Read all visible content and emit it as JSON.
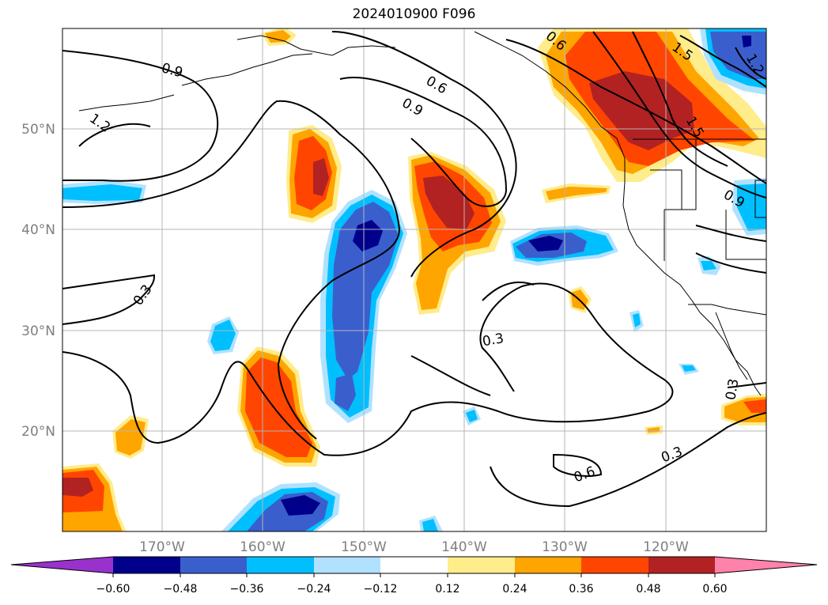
{
  "title": "2024010900 F096",
  "map": {
    "lat_ticks": [
      {
        "label": "50°N",
        "value": 50
      },
      {
        "label": "40°N",
        "value": 40
      },
      {
        "label": "30°N",
        "value": 30
      },
      {
        "label": "20°N",
        "value": 20
      }
    ],
    "lon_ticks": [
      {
        "label": "170°W",
        "value": -170
      },
      {
        "label": "160°W",
        "value": -160
      },
      {
        "label": "150°W",
        "value": -150
      },
      {
        "label": "140°W",
        "value": -140
      },
      {
        "label": "130°W",
        "value": -130
      },
      {
        "label": "120°W",
        "value": -120
      }
    ],
    "contour_labels": [
      "0.9",
      "1.2",
      "0.6",
      "0.9",
      "0.3",
      "0.3",
      "0.6",
      "0.3",
      "0.3",
      "1.5",
      "1.2",
      "0.9",
      "0.6",
      "1.5"
    ]
  },
  "colorbar": {
    "ticks": [
      "−0.60",
      "−0.48",
      "−0.36",
      "−0.24",
      "−0.12",
      "0.12",
      "0.24",
      "0.36",
      "0.48",
      "0.60"
    ],
    "colors": [
      "#9932cc",
      "#00008b",
      "#3a5fcd",
      "#00bfff",
      "#b0e2ff",
      "#ffffff",
      "#ffec8b",
      "#ffa500",
      "#ff4500",
      "#b22222",
      "#ff82ab"
    ]
  }
}
